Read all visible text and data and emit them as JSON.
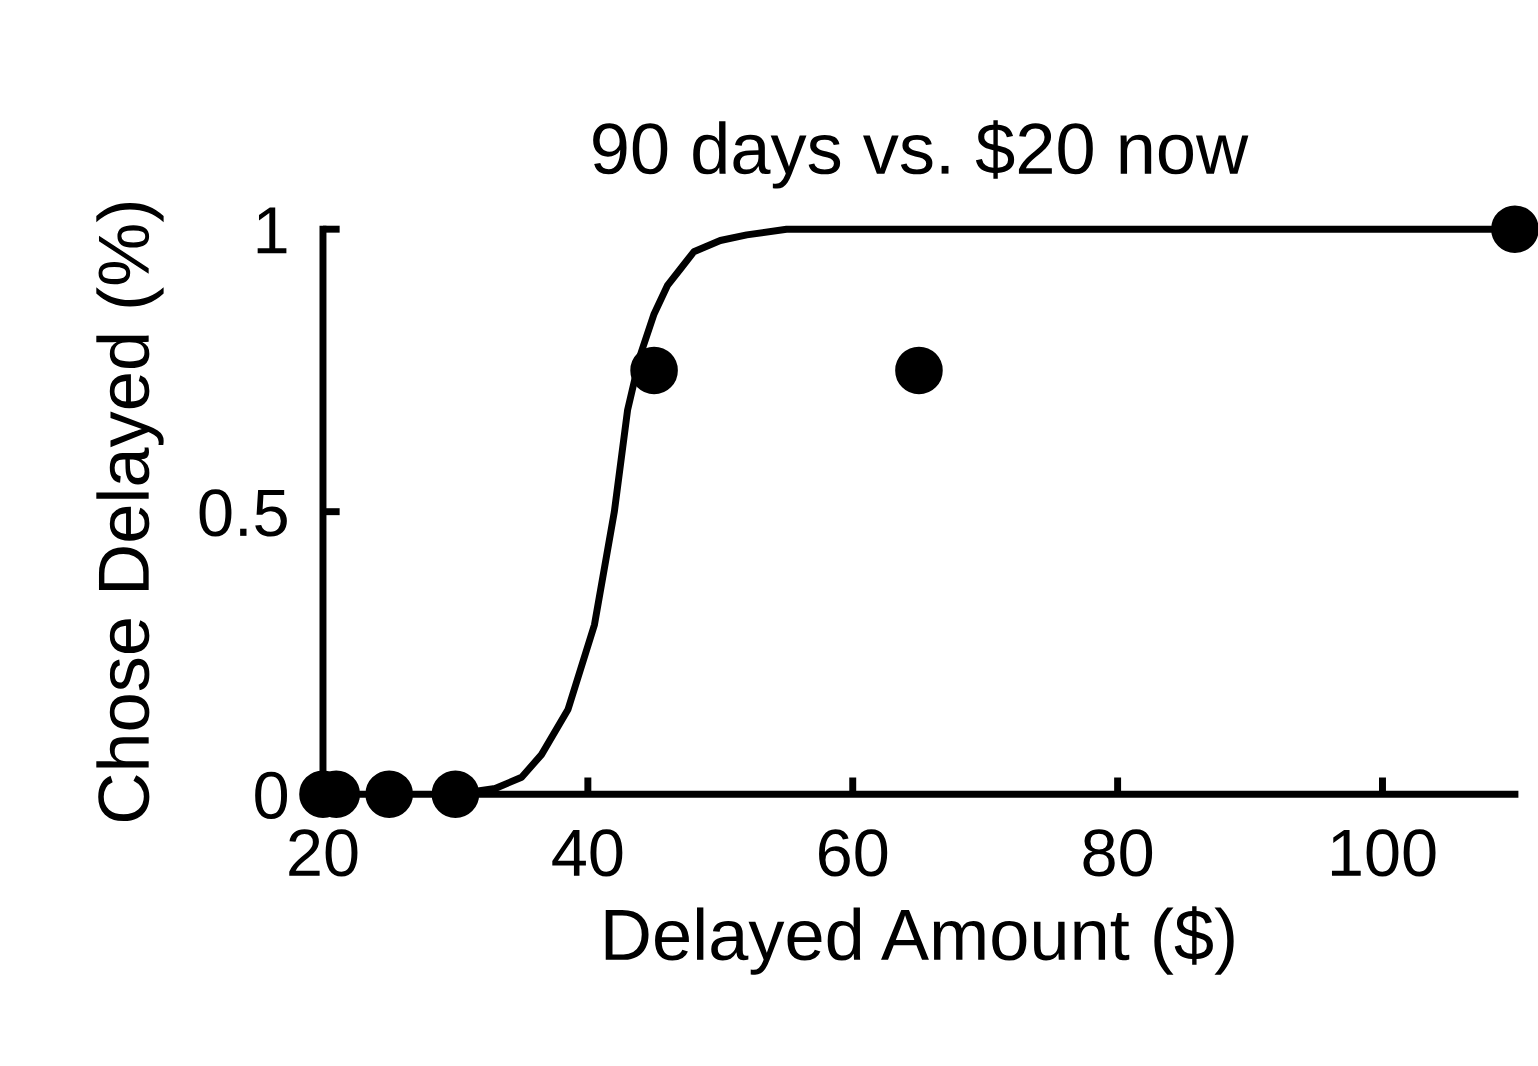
{
  "chart_data": {
    "type": "scatter",
    "title": "90 days vs. $20 now",
    "xlabel": "Delayed Amount ($)",
    "ylabel": "Chose Delayed (%)",
    "xlim": [
      20,
      110
    ],
    "ylim": [
      0,
      1
    ],
    "xticks": [
      20,
      40,
      60,
      80,
      100
    ],
    "yticks": [
      0,
      0.5,
      1
    ],
    "grid": false,
    "series": [
      {
        "marker": "circle",
        "color": "#000000",
        "x": [
          20,
          21,
          25,
          30,
          45,
          65,
          110
        ],
        "values": [
          0,
          0,
          0,
          0,
          0.75,
          0.75,
          1
        ]
      },
      {
        "type": "line",
        "color": "#000000",
        "marker": "none",
        "x": [
          30,
          33,
          35,
          36.5,
          38.5,
          40.5,
          42,
          43,
          44,
          45,
          46,
          47,
          48,
          50,
          52,
          55,
          60,
          80,
          110
        ],
        "values": [
          0,
          0.01,
          0.03,
          0.07,
          0.15,
          0.3,
          0.5,
          0.68,
          0.78,
          0.85,
          0.9,
          0.93,
          0.96,
          0.98,
          0.99,
          1,
          1,
          1,
          1
        ]
      }
    ]
  }
}
